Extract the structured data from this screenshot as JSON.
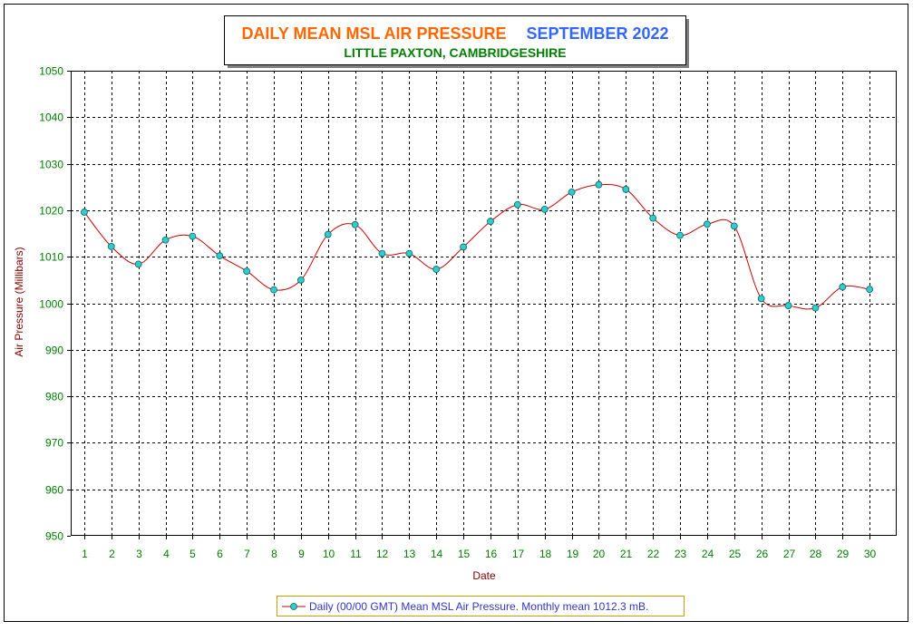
{
  "chart_data": {
    "type": "line",
    "title": {
      "main": "DAILY MEAN MSL AIR PRESSURE",
      "period": "SEPTEMBER 2022",
      "location": "LITTLE PAXTON, CAMBRIDGESHIRE"
    },
    "xlabel": "Date",
    "ylabel": "Air Pressure (Millibars)",
    "ylim": [
      950,
      1050
    ],
    "yticks": [
      950,
      960,
      970,
      980,
      990,
      1000,
      1010,
      1020,
      1030,
      1040,
      1050
    ],
    "x": [
      1,
      2,
      3,
      4,
      5,
      6,
      7,
      8,
      9,
      10,
      11,
      12,
      13,
      14,
      15,
      16,
      17,
      18,
      19,
      20,
      21,
      22,
      23,
      24,
      25,
      26,
      27,
      28,
      29,
      30
    ],
    "series": [
      {
        "name": "Daily (00/00 GMT) Mean MSL Air Pressure. Monthly mean 1012.3 mB.",
        "values": [
          1019.6,
          1012.2,
          1008.4,
          1013.6,
          1014.4,
          1010.2,
          1006.9,
          1002.9,
          1005.0,
          1014.8,
          1016.9,
          1010.7,
          1010.7,
          1007.3,
          1012.1,
          1017.6,
          1021.2,
          1020.2,
          1023.9,
          1025.5,
          1024.5,
          1018.3,
          1014.6,
          1017.0,
          1016.6,
          1001.0,
          999.5,
          999.0,
          1003.5,
          1003.0
        ]
      }
    ],
    "grid": true,
    "legend_position": "bottom",
    "colors": {
      "title_main": "#ff6600",
      "title_period": "#3366ff",
      "title_location": "#008000",
      "tick_labels": "#008000",
      "axis_titles": "#800000",
      "line": "#cc0000",
      "marker_fill": "#33cccc",
      "legend_text": "#3333cc"
    }
  }
}
